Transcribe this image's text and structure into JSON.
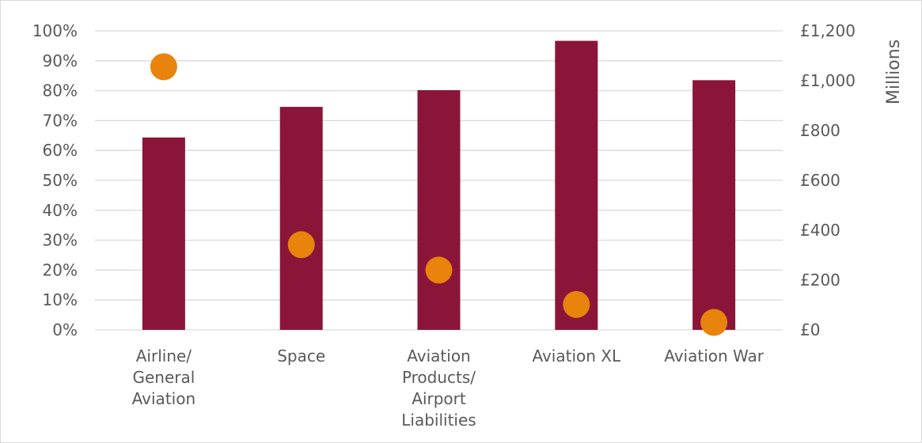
{
  "chart_data": {
    "type": "bar",
    "categories": [
      [
        "Airline/",
        "General",
        "Aviation"
      ],
      [
        "Space"
      ],
      [
        "Aviation",
        "Products/",
        "Airport",
        "Liabilities"
      ],
      [
        "Aviation XL"
      ],
      [
        "Aviation War"
      ]
    ],
    "series": [
      {
        "type": "bar",
        "axis": "right",
        "color": "#8b1538",
        "values": [
          772,
          895,
          962,
          1160,
          1002
        ]
      },
      {
        "type": "scatter",
        "axis": "left",
        "color": "#e8830c",
        "values": [
          0.88,
          0.285,
          0.2,
          0.085,
          0.025
        ]
      }
    ],
    "left_axis": {
      "min": 0,
      "max": 1,
      "step": 0.1,
      "ticks": [
        "0%",
        "10%",
        "20%",
        "30%",
        "40%",
        "50%",
        "60%",
        "70%",
        "80%",
        "90%",
        "100%"
      ]
    },
    "right_axis": {
      "min": 0,
      "max": 1200,
      "step": 200,
      "ticks": [
        "£0",
        "£200",
        "£400",
        "£600",
        "£800",
        "£1,000",
        "£1,200"
      ],
      "title": "Millions"
    },
    "grid": true,
    "legend": "none"
  }
}
